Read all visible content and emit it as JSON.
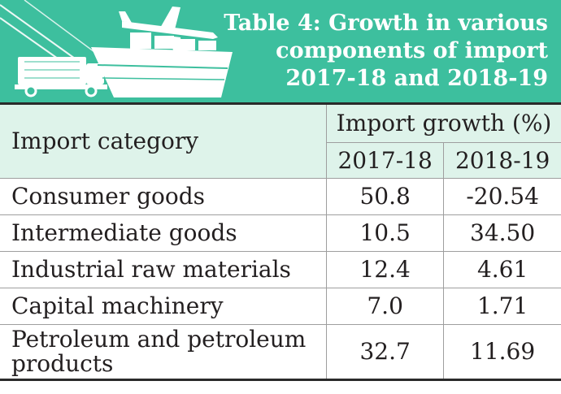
{
  "banner": {
    "title_lines": [
      "Table 4: Growth in various",
      "components of import",
      "2017-18 and 2018-19"
    ],
    "background": "#3dbf9e",
    "illustration_icons": [
      "airplane-icon",
      "cargo-ship-icon",
      "truck-icon"
    ]
  },
  "table": {
    "header": {
      "category_label": "Import category",
      "group_label": "Import growth (%)",
      "years": [
        "2017-18",
        "2018-19"
      ]
    },
    "header_background": "#def3ea",
    "rows": [
      {
        "category": "Consumer goods",
        "y2017_18": "50.8",
        "y2018_19": "-20.54"
      },
      {
        "category": "Intermediate goods",
        "y2017_18": "10.5",
        "y2018_19": "34.50"
      },
      {
        "category": "Industrial raw materials",
        "y2017_18": "12.4",
        "y2018_19": "4.61"
      },
      {
        "category": "Capital machinery",
        "y2017_18": "7.0",
        "y2018_19": "1.71"
      },
      {
        "category": "Petroleum and petroleum products",
        "y2017_18": "32.7",
        "y2018_19": "11.69"
      }
    ]
  }
}
